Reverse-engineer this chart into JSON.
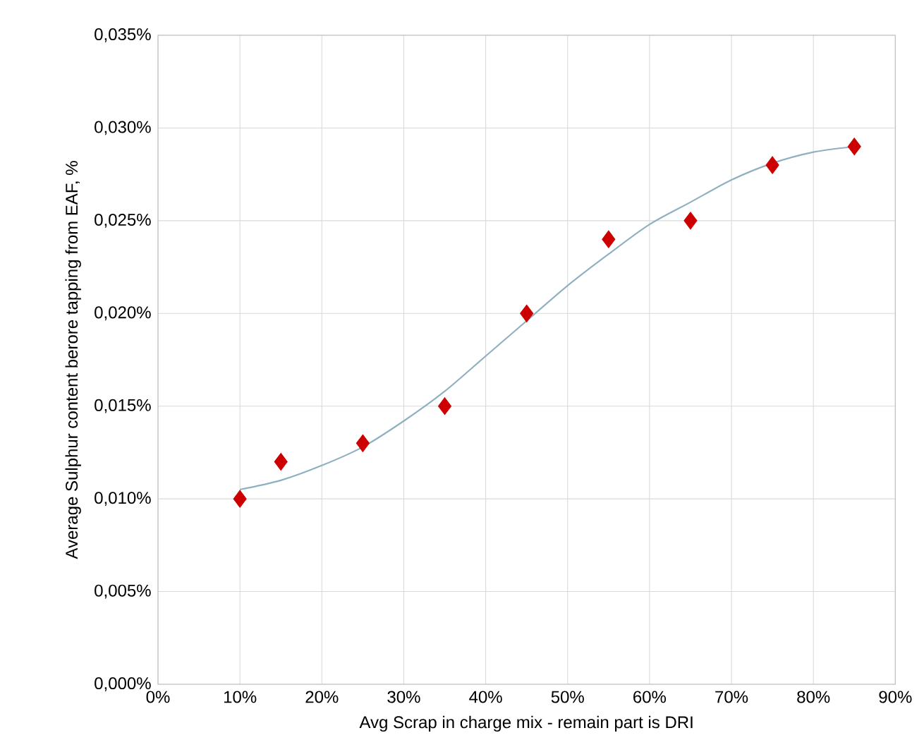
{
  "chart_data": {
    "type": "scatter",
    "xlabel": "Avg Scrap in charge mix  - remain part is DRI",
    "ylabel": "Average Sulphur content berore tapping from EAF, %",
    "xlim": [
      0,
      90
    ],
    "ylim": [
      0,
      0.035
    ],
    "xticks": [
      {
        "value": 0,
        "label": "0%"
      },
      {
        "value": 10,
        "label": "10%"
      },
      {
        "value": 20,
        "label": "20%"
      },
      {
        "value": 30,
        "label": "30%"
      },
      {
        "value": 40,
        "label": "40%"
      },
      {
        "value": 50,
        "label": "50%"
      },
      {
        "value": 60,
        "label": "60%"
      },
      {
        "value": 70,
        "label": "70%"
      },
      {
        "value": 80,
        "label": "80%"
      },
      {
        "value": 90,
        "label": "90%"
      }
    ],
    "yticks": [
      {
        "value": 0,
        "label": "0,000%"
      },
      {
        "value": 0.005,
        "label": "0,005%"
      },
      {
        "value": 0.01,
        "label": "0,010%"
      },
      {
        "value": 0.015,
        "label": "0,015%"
      },
      {
        "value": 0.02,
        "label": "0,020%"
      },
      {
        "value": 0.025,
        "label": "0,025%"
      },
      {
        "value": 0.03,
        "label": "0,030%"
      },
      {
        "value": 0.035,
        "label": "0,035%"
      }
    ],
    "grid": true,
    "series": [
      {
        "marker": "diamond",
        "color": "#cc0000",
        "x": [
          10,
          15,
          25,
          35,
          45,
          55,
          65,
          75,
          85
        ],
        "values": [
          0.01,
          0.012,
          0.013,
          0.015,
          0.02,
          0.024,
          0.025,
          0.028,
          0.029
        ]
      },
      {
        "type": "line",
        "marker": "none",
        "color": "#8fb0c0",
        "x": [
          10,
          15,
          20,
          25,
          30,
          35,
          40,
          45,
          50,
          55,
          60,
          65,
          70,
          75,
          80,
          85
        ],
        "values": [
          0.0105,
          0.011,
          0.0118,
          0.0128,
          0.0142,
          0.0158,
          0.0177,
          0.0196,
          0.0215,
          0.0232,
          0.0248,
          0.026,
          0.0272,
          0.0281,
          0.0287,
          0.029
        ]
      }
    ]
  }
}
